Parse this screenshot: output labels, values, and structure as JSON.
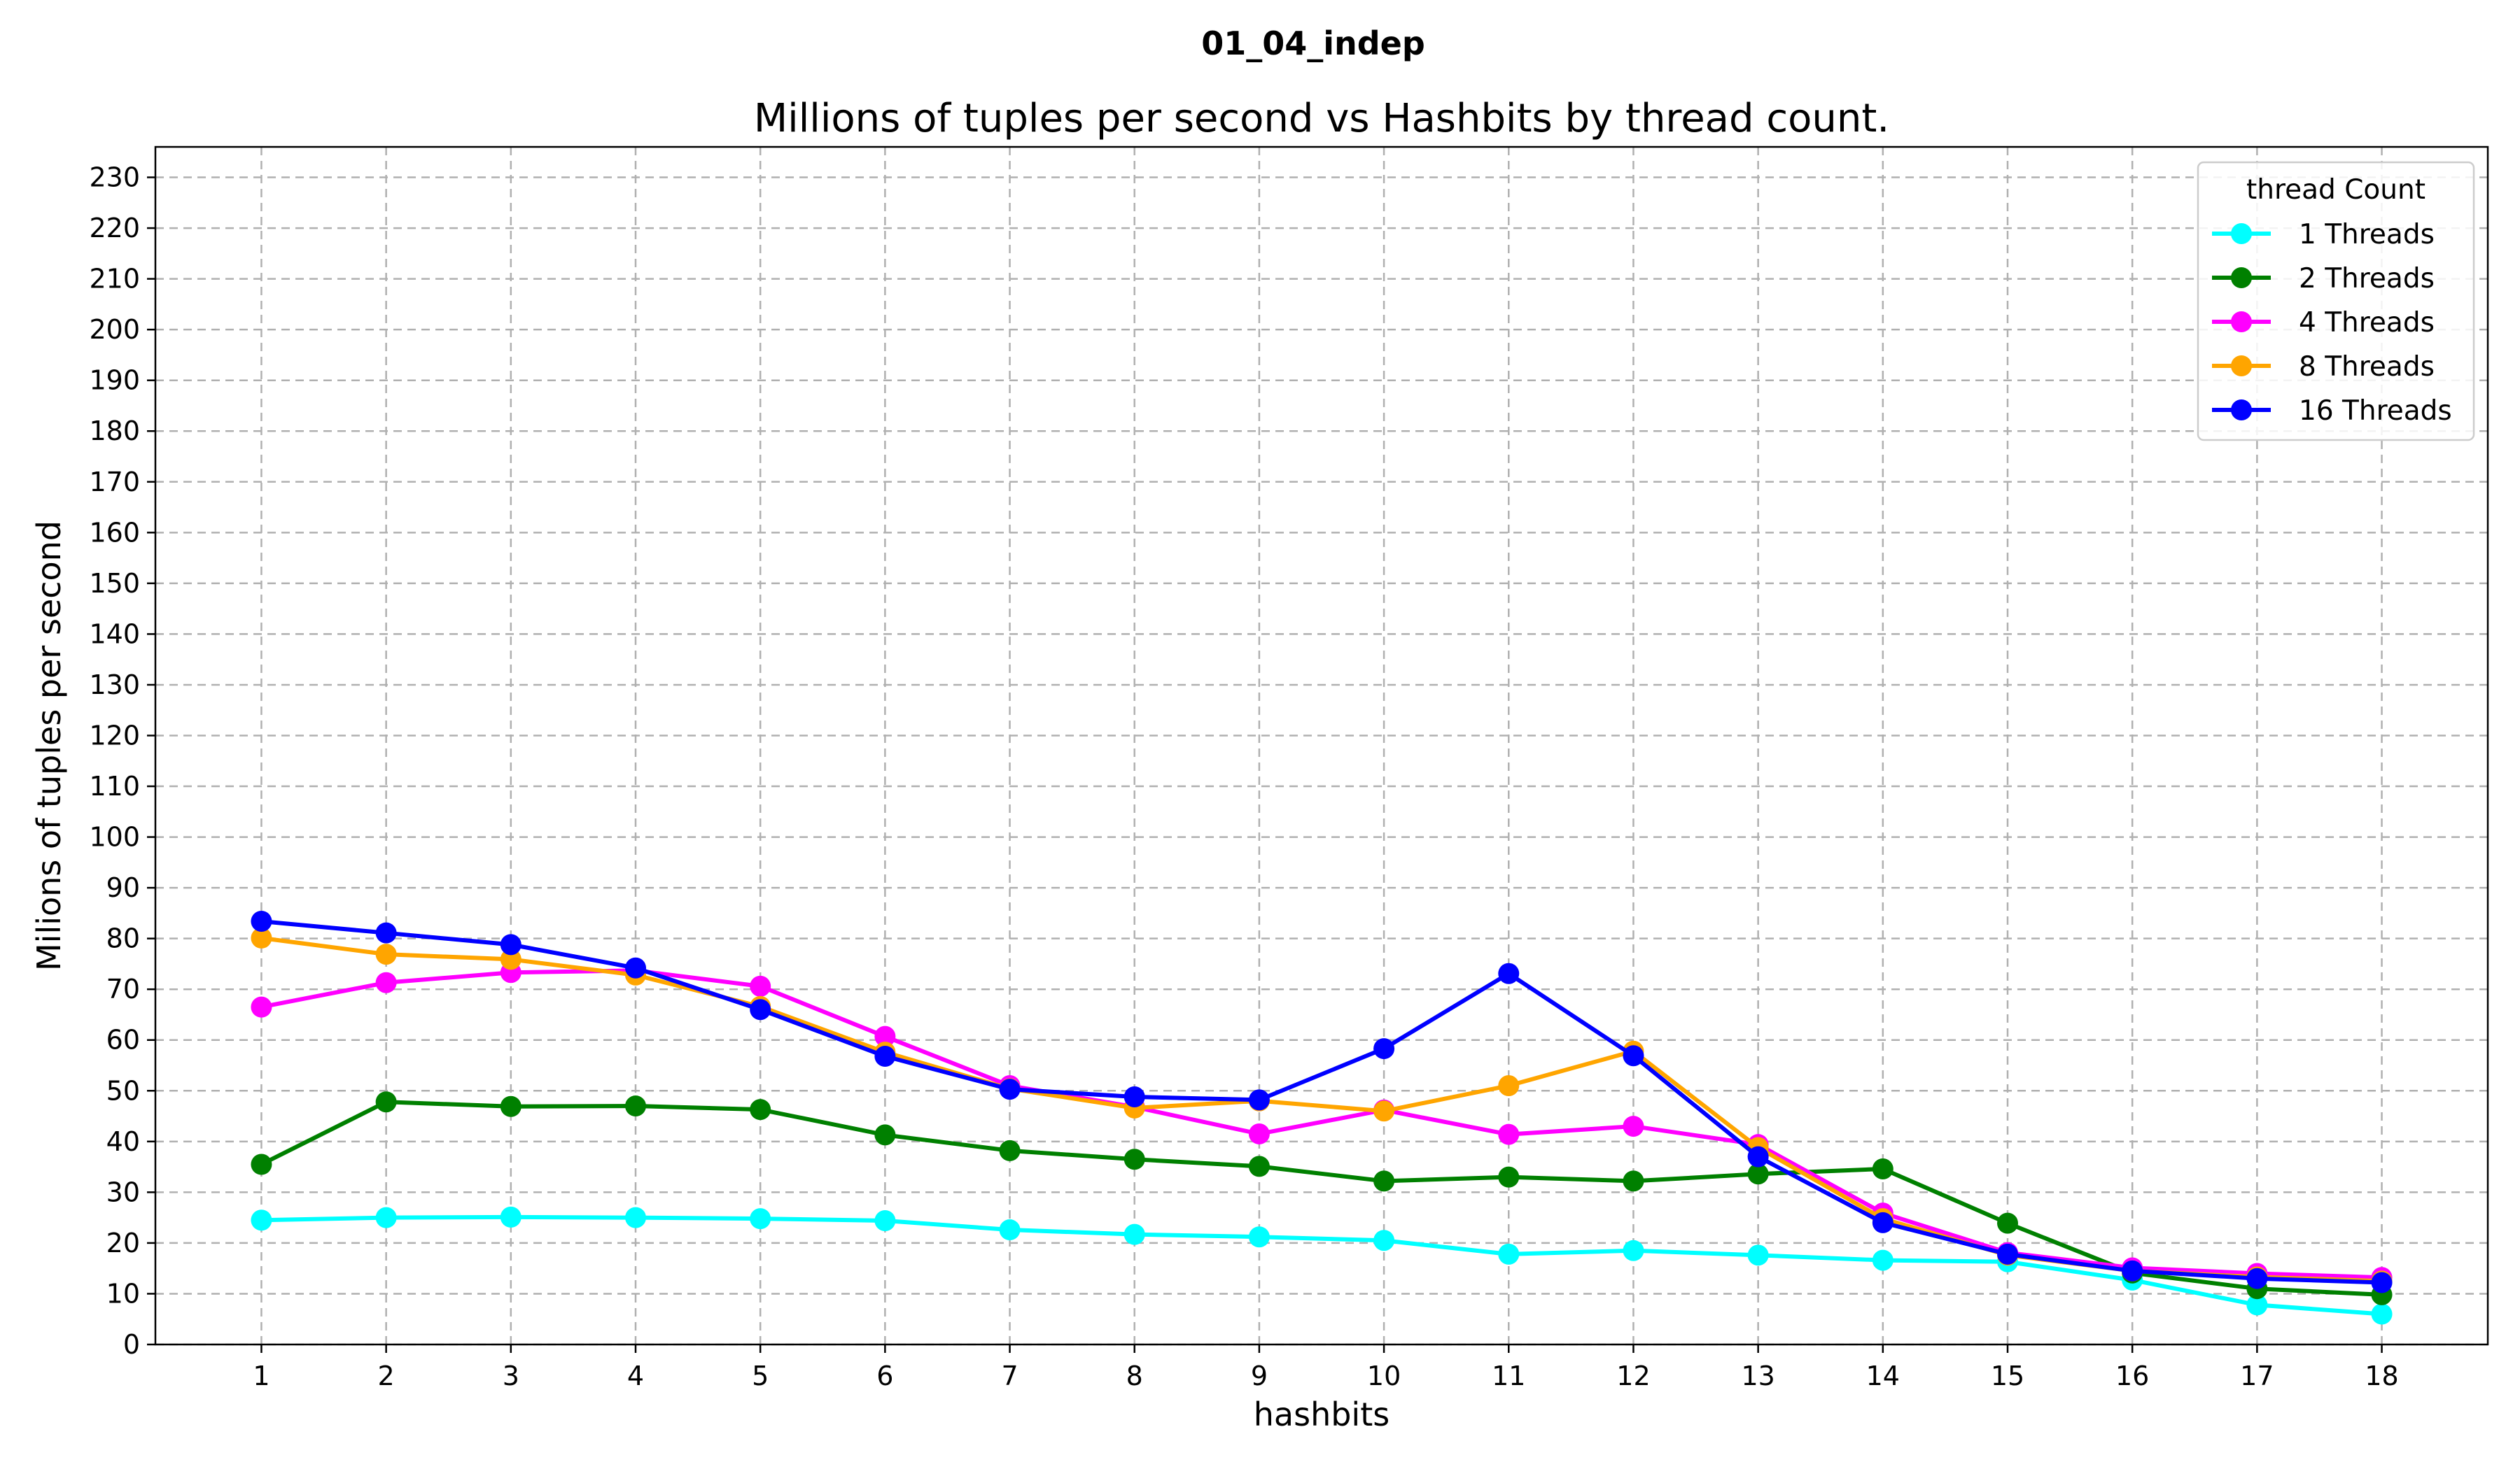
{
  "chart_data": {
    "type": "line",
    "suptitle": "01_04_indep",
    "title": "Millions of tuples per second vs Hashbits by thread count.",
    "xlabel": "hashbits",
    "ylabel": "Milions of tuples per second",
    "x": [
      1,
      2,
      3,
      4,
      5,
      6,
      7,
      8,
      9,
      10,
      11,
      12,
      13,
      14,
      15,
      16,
      17,
      18
    ],
    "xlim": [
      0.15,
      18.85
    ],
    "ylim": [
      0,
      236
    ],
    "y_ticks": [
      0,
      10,
      20,
      30,
      40,
      50,
      60,
      70,
      80,
      90,
      100,
      110,
      120,
      130,
      140,
      150,
      160,
      170,
      180,
      190,
      200,
      210,
      220,
      230
    ],
    "grid": true,
    "legend": {
      "title": "thread Count",
      "position": "top-right"
    },
    "series": [
      {
        "name": "1 Threads",
        "color": "#00ffff",
        "values": [
          24.5,
          25.0,
          25.1,
          25.0,
          24.8,
          24.4,
          22.6,
          21.7,
          21.2,
          20.5,
          17.8,
          18.5,
          17.6,
          16.6,
          16.3,
          12.7,
          7.8,
          6.0
        ]
      },
      {
        "name": "2 Threads",
        "color": "#008000",
        "values": [
          35.5,
          47.8,
          46.9,
          47.0,
          46.3,
          41.3,
          38.2,
          36.5,
          35.1,
          32.2,
          33.0,
          32.2,
          33.6,
          34.6,
          23.9,
          14.1,
          11.0,
          9.8
        ]
      },
      {
        "name": "4 Threads",
        "color": "#ff00ff",
        "values": [
          66.5,
          71.3,
          73.3,
          73.7,
          70.6,
          60.7,
          51.0,
          46.8,
          41.5,
          46.2,
          41.4,
          43.0,
          39.4,
          25.9,
          18.1,
          15.1,
          14.0,
          13.2
        ]
      },
      {
        "name": "8 Threads",
        "color": "#ffa500",
        "values": [
          80.1,
          76.9,
          75.9,
          72.8,
          66.6,
          57.6,
          50.4,
          46.6,
          48.0,
          46.0,
          51.0,
          57.8,
          38.8,
          24.8,
          17.6,
          14.5,
          13.3,
          12.5
        ]
      },
      {
        "name": "16 Threads",
        "color": "#0000ff",
        "values": [
          83.4,
          81.1,
          78.8,
          74.2,
          66.0,
          56.8,
          50.3,
          48.8,
          48.2,
          58.3,
          73.1,
          56.9,
          37.0,
          24.0,
          17.8,
          14.5,
          13.0,
          12.2
        ]
      }
    ]
  }
}
